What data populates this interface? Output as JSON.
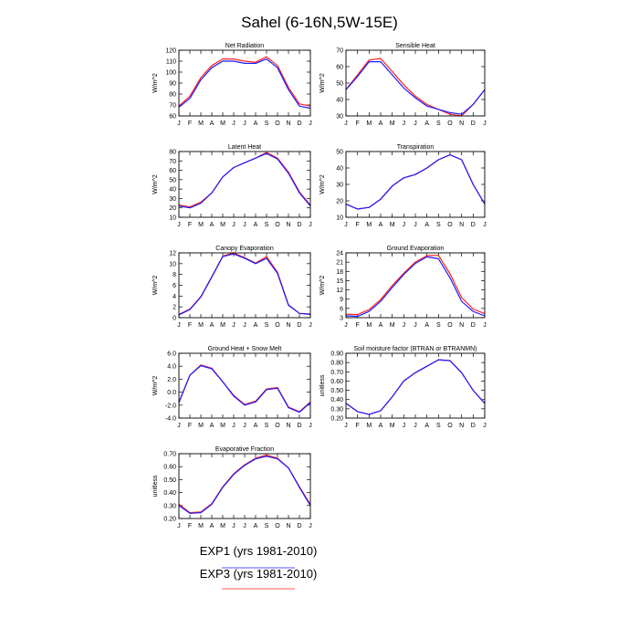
{
  "figure": {
    "title": "Sahel (6-16N,5W-15E)"
  },
  "colors": {
    "exp1": "#1c1cff",
    "exp3": "#ff2020"
  },
  "legend": [
    {
      "label": "EXP1 (yrs 1981-2010)",
      "color": "#1c1cff"
    },
    {
      "label": "EXP3 (yrs 1981-2010)",
      "color": "#ff2020"
    }
  ],
  "chart_data": [
    {
      "type": "line",
      "title": "Net Radiation",
      "ylabel": "W/m^2",
      "categories": [
        "J",
        "F",
        "M",
        "A",
        "M",
        "J",
        "J",
        "A",
        "S",
        "O",
        "N",
        "D",
        "J"
      ],
      "ylim": [
        60,
        120
      ],
      "yticks": [
        "60",
        "70",
        "80",
        "90",
        "100",
        "110",
        "120"
      ],
      "series": [
        {
          "name": "EXP1 (yrs 1981-2010)",
          "color": "#1c1cff",
          "values": [
            68,
            76,
            93,
            104,
            110,
            110,
            108,
            108,
            112,
            104,
            84,
            69,
            67
          ]
        },
        {
          "name": "EXP3 (yrs 1981-2010)",
          "color": "#ff2020",
          "values": [
            69,
            78,
            95,
            106,
            112,
            112,
            110,
            109,
            114,
            106,
            86,
            71,
            69
          ]
        }
      ]
    },
    {
      "type": "line",
      "title": "Sensible Heat",
      "ylabel": "W/m^2",
      "categories": [
        "J",
        "F",
        "M",
        "A",
        "M",
        "J",
        "J",
        "A",
        "S",
        "O",
        "N",
        "D",
        "J"
      ],
      "ylim": [
        30,
        70
      ],
      "yticks": [
        "30",
        "40",
        "50",
        "60",
        "70"
      ],
      "series": [
        {
          "name": "EXP1 (yrs 1981-2010)",
          "color": "#1c1cff",
          "values": [
            46,
            54,
            63,
            63,
            55,
            47,
            41,
            36,
            34,
            32,
            31,
            37,
            46
          ]
        },
        {
          "name": "EXP3 (yrs 1981-2010)",
          "color": "#ff2020",
          "values": [
            46,
            55,
            64,
            65,
            57,
            49,
            42,
            37,
            34,
            31,
            30,
            37,
            46
          ]
        }
      ]
    },
    {
      "type": "line",
      "title": "Latent Heat",
      "ylabel": "W/m^2",
      "categories": [
        "J",
        "F",
        "M",
        "A",
        "M",
        "J",
        "J",
        "A",
        "S",
        "O",
        "N",
        "D",
        "J"
      ],
      "ylim": [
        10,
        80
      ],
      "yticks": [
        "10",
        "20",
        "30",
        "40",
        "50",
        "60",
        "70",
        "80"
      ],
      "series": [
        {
          "name": "EXP1 (yrs 1981-2010)",
          "color": "#1c1cff",
          "values": [
            22,
            20,
            25,
            36,
            53,
            63,
            68,
            73,
            78,
            72,
            57,
            36,
            22
          ]
        },
        {
          "name": "EXP3 (yrs 1981-2010)",
          "color": "#ff2020",
          "values": [
            23,
            21,
            26,
            36,
            53,
            63,
            68,
            73,
            79,
            73,
            58,
            37,
            23
          ]
        }
      ]
    },
    {
      "type": "line",
      "title": "Transpiration",
      "ylabel": "W/m^2",
      "categories": [
        "J",
        "F",
        "M",
        "A",
        "M",
        "J",
        "J",
        "A",
        "S",
        "O",
        "N",
        "D",
        "J"
      ],
      "ylim": [
        10,
        50
      ],
      "yticks": [
        "10",
        "20",
        "30",
        "40",
        "50"
      ],
      "series": [
        {
          "name": "EXP1 (yrs 1981-2010)",
          "color": "#1c1cff",
          "values": [
            18,
            15,
            16,
            21,
            29,
            34,
            36,
            40,
            45,
            48,
            45,
            30,
            18
          ]
        },
        {
          "name": "EXP3 (yrs 1981-2010)",
          "color": "#ff2020",
          "values": [
            18,
            15,
            16,
            21,
            29,
            34,
            36,
            40,
            45,
            48,
            45,
            30,
            18
          ]
        }
      ]
    },
    {
      "type": "line",
      "title": "Canopy Evaporation",
      "ylabel": "W/m^2",
      "categories": [
        "J",
        "F",
        "M",
        "A",
        "M",
        "J",
        "J",
        "A",
        "S",
        "O",
        "N",
        "D",
        "J"
      ],
      "ylim": [
        0,
        12
      ],
      "yticks": [
        "0",
        "2",
        "4",
        "6",
        "8",
        "10",
        "12"
      ],
      "series": [
        {
          "name": "EXP1 (yrs 1981-2010)",
          "color": "#1c1cff",
          "values": [
            0.5,
            1.5,
            3.8,
            7.5,
            11.3,
            11.8,
            11.0,
            10.0,
            11.0,
            8.2,
            2.3,
            0.8,
            0.6
          ]
        },
        {
          "name": "EXP3 (yrs 1981-2010)",
          "color": "#ff2020",
          "values": [
            0.6,
            1.6,
            3.9,
            7.6,
            11.4,
            12.0,
            11.1,
            10.1,
            11.3,
            8.4,
            2.4,
            0.8,
            0.7
          ]
        }
      ]
    },
    {
      "type": "line",
      "title": "Ground Evaporation",
      "ylabel": "W/m^2",
      "categories": [
        "J",
        "F",
        "M",
        "A",
        "M",
        "J",
        "J",
        "A",
        "S",
        "O",
        "N",
        "D",
        "J"
      ],
      "ylim": [
        3,
        24
      ],
      "yticks": [
        "3",
        "6",
        "9",
        "12",
        "15",
        "18",
        "21",
        "24"
      ],
      "series": [
        {
          "name": "EXP1 (yrs 1981-2010)",
          "color": "#1c1cff",
          "values": [
            3.6,
            3.4,
            5.0,
            8.3,
            12.8,
            17.0,
            20.6,
            22.7,
            22.1,
            15.9,
            8.3,
            5.0,
            3.6
          ]
        },
        {
          "name": "EXP3 (yrs 1981-2010)",
          "color": "#ff2020",
          "values": [
            4.1,
            4.0,
            5.6,
            8.9,
            13.4,
            17.4,
            21.0,
            23.1,
            23.2,
            17.2,
            9.5,
            5.8,
            4.3
          ]
        }
      ]
    },
    {
      "type": "line",
      "title": "Ground Heat + Snow Melt",
      "ylabel": "W/m^2",
      "categories": [
        "J",
        "F",
        "M",
        "A",
        "M",
        "J",
        "J",
        "A",
        "S",
        "O",
        "N",
        "D",
        "J"
      ],
      "ylim": [
        -4,
        6
      ],
      "yticks": [
        "-4.0",
        "-2.0",
        "0.0",
        "2.0",
        "4.0",
        "6.0"
      ],
      "series": [
        {
          "name": "EXP1 (yrs 1981-2010)",
          "color": "#1c1cff",
          "values": [
            -1.6,
            2.6,
            4.1,
            3.6,
            1.6,
            -0.6,
            -2.0,
            -1.5,
            0.4,
            0.6,
            -2.4,
            -3.1,
            -1.6
          ]
        },
        {
          "name": "EXP3 (yrs 1981-2010)",
          "color": "#ff2020",
          "values": [
            -1.5,
            2.6,
            4.2,
            3.7,
            1.6,
            -0.5,
            -1.9,
            -1.4,
            0.5,
            0.7,
            -2.3,
            -3.0,
            -1.5
          ]
        }
      ]
    },
    {
      "type": "line",
      "title": "Soil moisture factor (BTRAN or BTRANMN)",
      "ylabel": "unitless",
      "categories": [
        "J",
        "F",
        "M",
        "A",
        "M",
        "J",
        "J",
        "A",
        "S",
        "O",
        "N",
        "D",
        "J"
      ],
      "ylim": [
        0.2,
        0.9
      ],
      "yticks": [
        "0.20",
        "0.30",
        "0.40",
        "0.50",
        "0.60",
        "0.70",
        "0.80",
        "0.90"
      ],
      "series": [
        {
          "name": "EXP1 (yrs 1981-2010)",
          "color": "#1c1cff",
          "values": [
            0.36,
            0.27,
            0.24,
            0.28,
            0.43,
            0.6,
            0.69,
            0.76,
            0.83,
            0.82,
            0.69,
            0.5,
            0.36
          ]
        },
        {
          "name": "EXP3 (yrs 1981-2010)",
          "color": "#ff2020",
          "values": [
            0.36,
            0.27,
            0.24,
            0.28,
            0.43,
            0.6,
            0.69,
            0.76,
            0.83,
            0.82,
            0.69,
            0.5,
            0.36
          ]
        }
      ]
    },
    {
      "type": "line",
      "title": "Evaporative Fraction",
      "ylabel": "unitless",
      "categories": [
        "J",
        "F",
        "M",
        "A",
        "M",
        "J",
        "J",
        "A",
        "S",
        "O",
        "N",
        "D",
        "J"
      ],
      "ylim": [
        0.2,
        0.7
      ],
      "yticks": [
        "0.20",
        "0.30",
        "0.40",
        "0.50",
        "0.60",
        "0.70"
      ],
      "series": [
        {
          "name": "EXP1 (yrs 1981-2010)",
          "color": "#1c1cff",
          "values": [
            0.3,
            0.24,
            0.245,
            0.31,
            0.44,
            0.54,
            0.61,
            0.66,
            0.68,
            0.66,
            0.59,
            0.44,
            0.3
          ]
        },
        {
          "name": "EXP3 (yrs 1981-2010)",
          "color": "#ff2020",
          "values": [
            0.31,
            0.245,
            0.25,
            0.315,
            0.445,
            0.545,
            0.615,
            0.665,
            0.69,
            0.665,
            0.59,
            0.445,
            0.31
          ]
        }
      ]
    }
  ]
}
